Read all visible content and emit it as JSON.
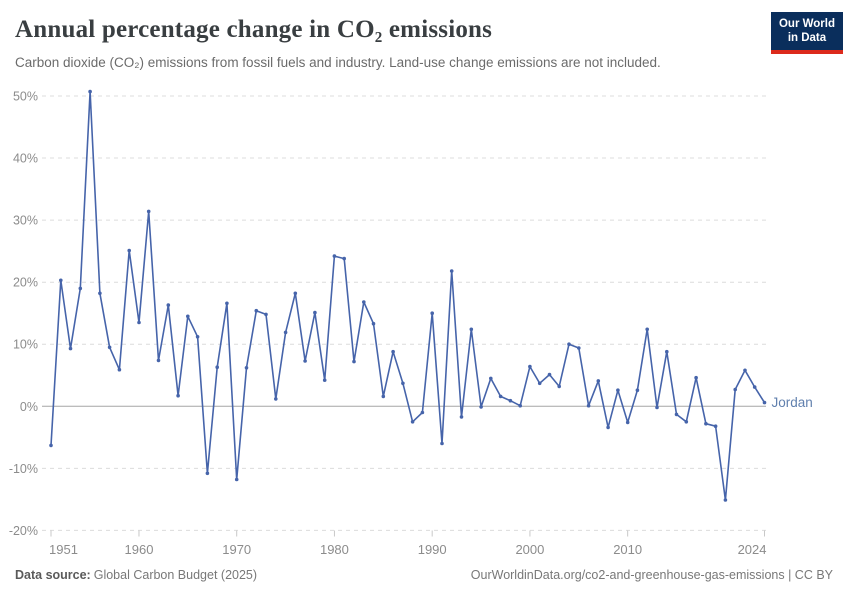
{
  "header": {
    "title": "Annual percentage change in CO₂ emissions",
    "subtitle": "Carbon dioxide (CO₂) emissions from fossil fuels and industry. Land-use change emissions are not included.",
    "logo": {
      "line1": "Our World",
      "line2": "in Data"
    }
  },
  "chart_data": {
    "type": "line",
    "title": "Annual percentage change in CO₂ emissions",
    "entity": "Jordan",
    "y_unit": "%",
    "ylim": [
      -20,
      50
    ],
    "y_ticks": [
      50,
      40,
      30,
      20,
      10,
      0,
      -10,
      -20
    ],
    "x_ticks": [
      1951,
      1960,
      1970,
      1980,
      1990,
      2000,
      2010,
      2024
    ],
    "grid": true,
    "legend_position": "end-of-line",
    "years": [
      1951,
      1952,
      1953,
      1954,
      1955,
      1956,
      1957,
      1958,
      1959,
      1960,
      1961,
      1962,
      1963,
      1964,
      1965,
      1966,
      1967,
      1968,
      1969,
      1970,
      1971,
      1972,
      1973,
      1974,
      1975,
      1976,
      1977,
      1978,
      1979,
      1980,
      1981,
      1982,
      1983,
      1984,
      1985,
      1986,
      1987,
      1988,
      1989,
      1990,
      1991,
      1992,
      1993,
      1994,
      1995,
      1996,
      1997,
      1998,
      1999,
      2000,
      2001,
      2002,
      2003,
      2004,
      2005,
      2006,
      2007,
      2008,
      2009,
      2010,
      2011,
      2012,
      2013,
      2014,
      2015,
      2016,
      2017,
      2018,
      2019,
      2020,
      2021,
      2022,
      2023,
      2024
    ],
    "series": [
      {
        "name": "Jordan",
        "values": [
          -6.3,
          20.3,
          9.3,
          19.0,
          50.7,
          18.2,
          9.5,
          5.9,
          25.1,
          13.5,
          31.4,
          7.4,
          16.3,
          1.7,
          14.5,
          11.2,
          -10.8,
          6.3,
          16.6,
          -11.8,
          6.2,
          15.4,
          14.8,
          1.2,
          11.9,
          18.2,
          7.3,
          15.1,
          4.2,
          24.2,
          23.8,
          7.2,
          16.8,
          13.3,
          1.6,
          8.8,
          3.7,
          -2.5,
          -1.0,
          15.0,
          -6.0,
          21.8,
          -1.7,
          12.4,
          -0.1,
          4.5,
          1.6,
          0.9,
          0.1,
          6.4,
          3.7,
          5.1,
          3.2,
          10.0,
          9.4,
          0.1,
          4.1,
          -3.4,
          2.6,
          -2.6,
          2.6,
          12.4,
          -0.2,
          8.8,
          -1.3,
          -2.5,
          4.6,
          -2.8,
          -3.2,
          -15.1,
          2.7,
          5.8,
          3.1,
          0.6
        ]
      }
    ]
  },
  "footer": {
    "source_label": "Data source:",
    "source_value": "Global Carbon Budget (2025)",
    "credit": "OurWorldinData.org/co2-and-greenhouse-gas-emissions | CC BY"
  },
  "colors": {
    "line": "#4664aa",
    "entity_label": "#6180ae",
    "grid": "#dcdcdc",
    "zero_line": "#a5a5a5",
    "axis_text": "#8c8c8c",
    "tick": "#c8c8c8",
    "logo_bg": "#0a2e5c",
    "logo_accent": "#dc2a1c"
  }
}
